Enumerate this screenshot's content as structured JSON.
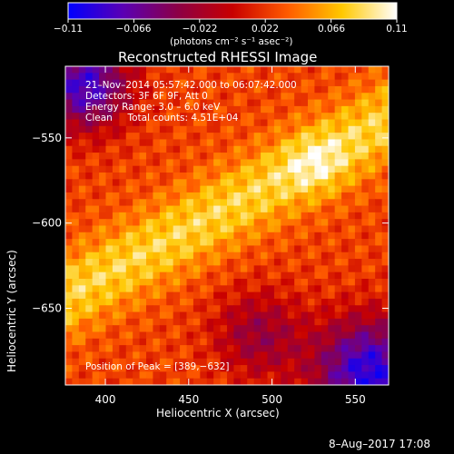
{
  "chart_data": {
    "type": "heatmap",
    "title": "Reconstructed RHESSI Image",
    "xlabel": "Heliocentric X (arcsec)",
    "ylabel": "Heliocentric Y (arcsec)",
    "xlim": [
      376,
      570
    ],
    "ylim": [
      -695,
      -508
    ],
    "x_ticks": [
      400,
      450,
      500,
      550
    ],
    "x_tick_labels": [
      "400",
      "450",
      "500",
      "550"
    ],
    "y_ticks": [
      -550,
      -600,
      -650
    ],
    "y_tick_labels": [
      "−550",
      "−600",
      "−650"
    ],
    "colorbar": {
      "unit_label": "(photons cm⁻² s⁻¹ asec⁻²)",
      "range": [
        -0.11,
        0.11
      ],
      "ticks": [
        -0.11,
        -0.066,
        -0.022,
        0.022,
        0.066,
        0.11
      ],
      "tick_labels": [
        "−0.11",
        "−0.066",
        "−0.022",
        "0.022",
        "0.066",
        "0.11"
      ],
      "stops": [
        "#0000ff",
        "#5a00b4",
        "#8c0046",
        "#c80000",
        "#ff5a00",
        "#ffc800",
        "#ffffff"
      ]
    },
    "annotations": {
      "line1": "21–Nov–2014 05:57:42.000 to 06:07:42.000",
      "line2": "Detectors: 3F 6F 9F, Att 0",
      "line3": "Energy Range: 3.0 – 6.0 keV",
      "line4": "Clean     Total counts: 4.51E+04",
      "peak": "Position of Peak = [389,−632]"
    },
    "peak_position": [
      389,
      -632
    ],
    "grid": false
  },
  "footer": {
    "date": "8–Aug–2017 17:08"
  }
}
